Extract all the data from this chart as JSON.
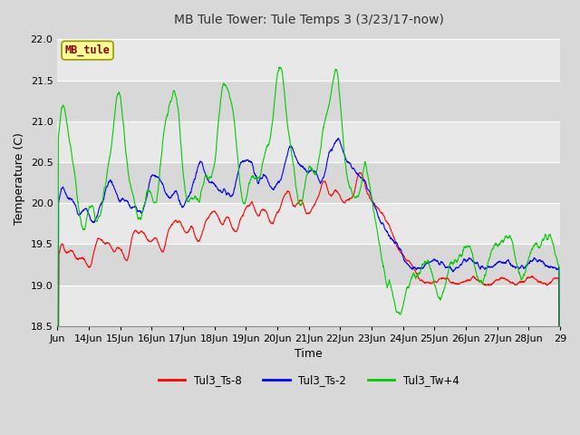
{
  "title": "MB Tule Tower: Tule Temps 3 (3/23/17-now)",
  "xlabel": "Time",
  "ylabel": "Temperature (C)",
  "ylim": [
    18.5,
    22.1
  ],
  "xlim": [
    0,
    15.5
  ],
  "yticks": [
    18.5,
    19.0,
    19.5,
    20.0,
    20.5,
    21.0,
    21.5,
    22.0
  ],
  "xtick_labels": [
    "Jun",
    "14Jun",
    "15Jun",
    "16Jun",
    "17Jun",
    "18Jun",
    "19Jun",
    "20Jun",
    "21Jun",
    "22Jun",
    "23Jun",
    "24Jun",
    "25Jun",
    "26Jun",
    "27Jun",
    "28Jun",
    "29"
  ],
  "legend_labels": [
    "Tul3_Ts-8",
    "Tul3_Ts-2",
    "Tul3_Tw+4"
  ],
  "legend_colors": [
    "#ff0000",
    "#0000ff",
    "#00cc00"
  ],
  "watermark_text": "MB_tule",
  "watermark_color": "#8b0000",
  "watermark_bg": "#ffff99",
  "watermark_border": "#999900",
  "line_colors": [
    "#ff0000",
    "#0000ff",
    "#00cc00"
  ],
  "bg_color": "#d8d8d8",
  "plot_bg_dark": "#d8d8d8",
  "plot_bg_light": "#e8e8e8",
  "title_fontsize": 10,
  "axis_fontsize": 8
}
